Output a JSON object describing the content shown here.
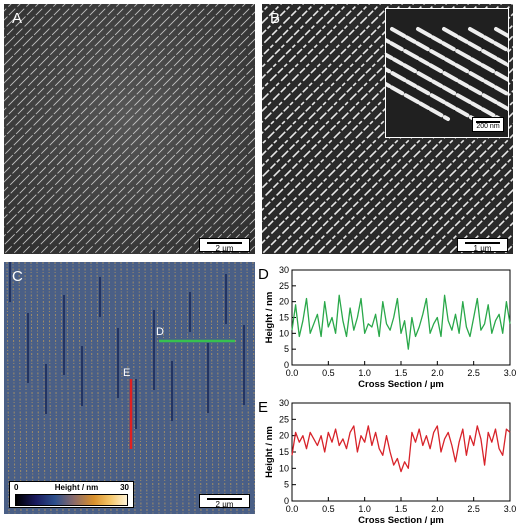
{
  "panels": {
    "a": {
      "letter": "A",
      "scale_label": "2 µm"
    },
    "b": {
      "letter": "B",
      "scale_label": "1 µm",
      "inset_scale_label": "200 nm"
    },
    "c": {
      "letter": "C",
      "scale_label": "2 µm",
      "line_d_label": "D",
      "line_e_label": "E",
      "colorbar": {
        "min": "0",
        "max": "30",
        "title": "Height / nm"
      }
    },
    "d": {
      "letter": "D"
    },
    "e": {
      "letter": "E"
    }
  },
  "colors": {
    "profile_d": "#2aa84a",
    "profile_e": "#d8232a",
    "afm_base": "#4a5f86"
  },
  "chart_data": [
    {
      "type": "line",
      "panel": "D",
      "xlabel": "Cross Section / µm",
      "ylabel": "Height / nm",
      "xlim": [
        0,
        3.0
      ],
      "ylim": [
        0,
        30
      ],
      "xticks": [
        "0.0",
        "0.5",
        "1.0",
        "1.5",
        "2.0",
        "2.5",
        "3.0"
      ],
      "yticks": [
        "0",
        "5",
        "10",
        "15",
        "20",
        "25",
        "30"
      ],
      "grid": false,
      "series": [
        {
          "x": [
            0.0,
            0.05,
            0.1,
            0.15,
            0.2,
            0.25,
            0.3,
            0.35,
            0.4,
            0.45,
            0.5,
            0.55,
            0.6,
            0.65,
            0.7,
            0.75,
            0.8,
            0.85,
            0.9,
            0.95,
            1.0,
            1.05,
            1.1,
            1.15,
            1.2,
            1.25,
            1.3,
            1.35,
            1.4,
            1.45,
            1.5,
            1.55,
            1.6,
            1.65,
            1.7,
            1.75,
            1.8,
            1.85,
            1.9,
            1.95,
            2.0,
            2.05,
            2.1,
            2.15,
            2.2,
            2.25,
            2.3,
            2.35,
            2.4,
            2.45,
            2.5,
            2.55,
            2.6,
            2.65,
            2.7,
            2.75,
            2.8,
            2.85,
            2.9,
            2.95,
            3.0
          ],
          "y": [
            11,
            19,
            9,
            14,
            21,
            10,
            13,
            16,
            9,
            20,
            12,
            15,
            10,
            22,
            14,
            9,
            18,
            11,
            15,
            21,
            10,
            13,
            12,
            16,
            9,
            20,
            13,
            11,
            15,
            21,
            10,
            14,
            5,
            15,
            9,
            12,
            16,
            21,
            10,
            13,
            15,
            9,
            22,
            14,
            11,
            16,
            10,
            20,
            12,
            9,
            15,
            21,
            11,
            13,
            19,
            10,
            14,
            16,
            10,
            20,
            13
          ]
        }
      ]
    },
    {
      "type": "line",
      "panel": "E",
      "xlabel": "Cross Section / µm",
      "ylabel": "Height / nm",
      "xlim": [
        0,
        3.0
      ],
      "ylim": [
        0,
        30
      ],
      "xticks": [
        "0.0",
        "0.5",
        "1.0",
        "1.5",
        "2.0",
        "2.5",
        "3.0"
      ],
      "yticks": [
        "0",
        "5",
        "10",
        "15",
        "20",
        "25",
        "30"
      ],
      "grid": false,
      "series": [
        {
          "x": [
            0.0,
            0.05,
            0.1,
            0.15,
            0.2,
            0.25,
            0.3,
            0.35,
            0.4,
            0.45,
            0.5,
            0.55,
            0.6,
            0.65,
            0.7,
            0.75,
            0.8,
            0.85,
            0.9,
            0.95,
            1.0,
            1.05,
            1.1,
            1.15,
            1.2,
            1.25,
            1.3,
            1.35,
            1.4,
            1.45,
            1.5,
            1.55,
            1.6,
            1.65,
            1.7,
            1.75,
            1.8,
            1.85,
            1.9,
            1.95,
            2.0,
            2.05,
            2.1,
            2.15,
            2.2,
            2.25,
            2.3,
            2.35,
            2.4,
            2.45,
            2.5,
            2.55,
            2.6,
            2.65,
            2.7,
            2.75,
            2.8,
            2.85,
            2.9,
            2.95,
            3.0
          ],
          "y": [
            14,
            21,
            18,
            20,
            16,
            21,
            19,
            17,
            20,
            15,
            21,
            18,
            22,
            17,
            19,
            16,
            21,
            23,
            15,
            20,
            18,
            23,
            17,
            21,
            16,
            14,
            20,
            15,
            11,
            13,
            9,
            12,
            10,
            21,
            18,
            22,
            17,
            20,
            16,
            21,
            23,
            15,
            19,
            21,
            17,
            12,
            18,
            22,
            14,
            20,
            17,
            23,
            19,
            11,
            21,
            18,
            22,
            16,
            14,
            22,
            21
          ]
        }
      ]
    }
  ]
}
